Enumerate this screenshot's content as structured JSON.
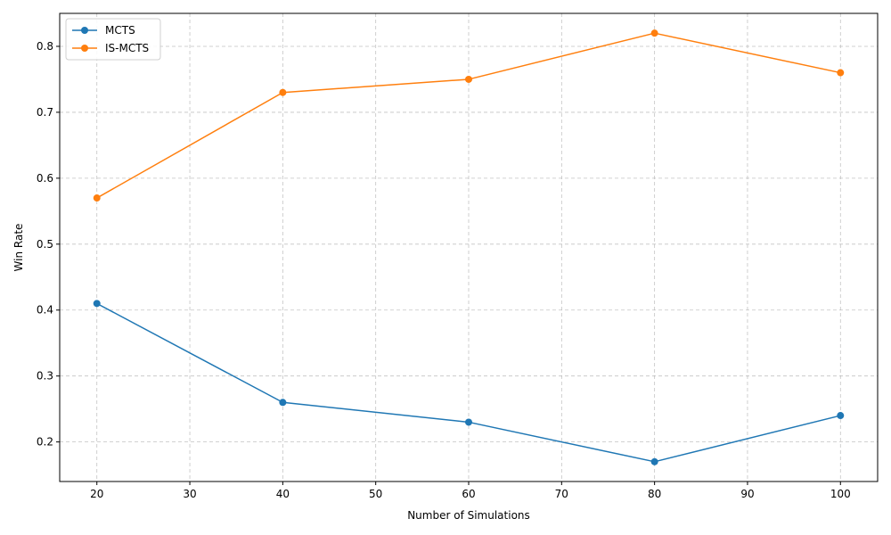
{
  "chart_data": {
    "type": "line",
    "title": "",
    "xlabel": "Number of Simulations",
    "ylabel": "Win Rate",
    "x": [
      20,
      40,
      60,
      80,
      100
    ],
    "xlim": [
      16,
      104
    ],
    "ylim": [
      0.14,
      0.85
    ],
    "xticks": [
      20,
      30,
      40,
      50,
      60,
      70,
      80,
      90,
      100
    ],
    "yticks": [
      0.2,
      0.3,
      0.4,
      0.5,
      0.6,
      0.7,
      0.8
    ],
    "grid": true,
    "legend_position": "top-left",
    "series": [
      {
        "name": "MCTS",
        "color": "#1f77b4",
        "values": [
          0.41,
          0.26,
          0.23,
          0.17,
          0.24
        ]
      },
      {
        "name": "IS-MCTS",
        "color": "#ff7f0e",
        "values": [
          0.57,
          0.73,
          0.75,
          0.82,
          0.76
        ]
      }
    ]
  }
}
